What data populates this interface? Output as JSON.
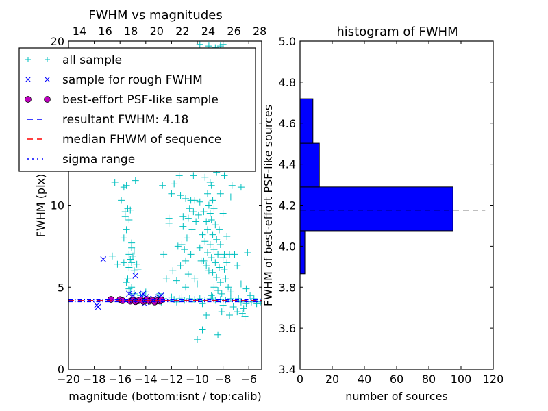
{
  "chart_data": [
    {
      "type": "scatter",
      "title": "FWHM vs magnitudes",
      "xlabel": "magnitude (bottom:isnt / top:calib)",
      "ylabel": "FWHM (pix)",
      "xlim": [
        -20,
        -5
      ],
      "ylim": [
        0,
        20
      ],
      "xticks": [
        -20,
        -18,
        -16,
        -14,
        -12,
        -10,
        -8,
        -6
      ],
      "xtick_labels": [
        "−20",
        "−18",
        "−16",
        "−14",
        "−12",
        "−10",
        "−8",
        "−6"
      ],
      "yticks": [
        0,
        5,
        10,
        15,
        20
      ],
      "ytick_labels": [
        "0",
        "5",
        "10",
        "15",
        "20"
      ],
      "top_axis": {
        "xlim": [
          13.15,
          28.15
        ],
        "ticks": [
          14,
          16,
          18,
          20,
          22,
          24,
          26,
          28
        ],
        "tick_labels": [
          "14",
          "16",
          "18",
          "20",
          "22",
          "24",
          "26",
          "28"
        ]
      },
      "grid": false,
      "legend": {
        "placement": "upper-left",
        "entries": [
          {
            "label": "all sample",
            "marker": "plus",
            "color": "#00bfbf"
          },
          {
            "label": "sample for rough FWHM",
            "marker": "x",
            "color": "#0000ff"
          },
          {
            "label": "best-effort PSF-like sample",
            "marker": "circle",
            "color": "#bf00bf"
          },
          {
            "label": "resultant FWHM: 4.18",
            "marker": "dashed-line",
            "color": "#0000ff"
          },
          {
            "label": "median FHWM of sequence",
            "marker": "dashed-line",
            "color": "#ff0000"
          },
          {
            "label": "sigma range",
            "marker": "dashdot-line",
            "color": "#0000ff"
          }
        ]
      },
      "hlines": [
        {
          "name": "resultant FWHM",
          "y": 4.18,
          "style": "dashed",
          "color": "#0000ff"
        },
        {
          "name": "median FHWM of sequence",
          "y": 4.18,
          "style": "dashed",
          "color": "#ff0000"
        },
        {
          "name": "sigma range upper",
          "y": 4.24,
          "style": "dashdot",
          "color": "#0000ff"
        },
        {
          "name": "sigma range lower",
          "y": 4.12,
          "style": "dashdot",
          "color": "#0000ff"
        }
      ],
      "series": [
        {
          "name": "all sample",
          "marker": "plus",
          "color": "#00bfbf",
          "points": [
            [
              -16.4,
              11.4
            ],
            [
              -15.7,
              11.1
            ],
            [
              -15.5,
              11.2
            ],
            [
              -14.8,
              11.5
            ],
            [
              -12.7,
              11.2
            ],
            [
              -15.9,
              10.3
            ],
            [
              -15.4,
              9.8
            ],
            [
              -15.6,
              9.6
            ],
            [
              -15.2,
              9.7
            ],
            [
              -15.6,
              9.3
            ],
            [
              -15.3,
              9.1
            ],
            [
              -15.5,
              8.5
            ],
            [
              -15.7,
              8.0
            ],
            [
              -15.1,
              7.7
            ],
            [
              -15.1,
              7.4
            ],
            [
              -14.9,
              7.2
            ],
            [
              -15.3,
              7.0
            ],
            [
              -15.0,
              6.9
            ],
            [
              -15.2,
              6.7
            ],
            [
              -16.6,
              6.9
            ],
            [
              -16.2,
              6.4
            ],
            [
              -15.7,
              6.5
            ],
            [
              -15.1,
              6.5
            ],
            [
              -14.7,
              6.4
            ],
            [
              -15.3,
              6.2
            ],
            [
              -14.9,
              6.0
            ],
            [
              -14.6,
              6.1
            ],
            [
              -15.4,
              5.5
            ],
            [
              -15.5,
              5.3
            ],
            [
              -15.1,
              5.0
            ],
            [
              -15.3,
              4.9
            ],
            [
              -15.2,
              4.7
            ],
            [
              -14.9,
              4.6
            ],
            [
              -12.6,
              7.0
            ],
            [
              -12.2,
              9.2
            ],
            [
              -12.2,
              8.9
            ],
            [
              -12.4,
              5.5
            ],
            [
              -13.0,
              4.3
            ],
            [
              -12.6,
              4.3
            ],
            [
              -12.2,
              4.2
            ],
            [
              -11.8,
              4.25
            ],
            [
              -11.4,
              4.3
            ],
            [
              -11.0,
              4.2
            ],
            [
              -10.6,
              4.3
            ],
            [
              -10.2,
              4.25
            ],
            [
              -9.8,
              4.3
            ],
            [
              -9.4,
              4.2
            ],
            [
              -9.0,
              4.3
            ],
            [
              -8.6,
              4.2
            ],
            [
              -8.2,
              4.25
            ],
            [
              -7.8,
              4.2
            ],
            [
              -7.4,
              4.3
            ],
            [
              -7.0,
              4.2
            ],
            [
              -6.6,
              4.1
            ],
            [
              -6.2,
              4.0
            ],
            [
              -5.8,
              4.1
            ],
            [
              -5.4,
              4.0
            ],
            [
              -5.1,
              4.1
            ],
            [
              -12.0,
              4.4
            ],
            [
              -11.2,
              4.4
            ],
            [
              -10.4,
              4.1
            ],
            [
              -9.6,
              4.0
            ],
            [
              -8.8,
              4.4
            ],
            [
              -8.0,
              3.9
            ],
            [
              -7.2,
              3.8
            ],
            [
              -6.4,
              3.7
            ],
            [
              -12.8,
              4.1
            ],
            [
              -11.6,
              4.1
            ],
            [
              -10.0,
              1.8
            ],
            [
              -9.6,
              2.4
            ],
            [
              -8.4,
              2.1
            ],
            [
              -6.5,
              3.4
            ],
            [
              -6.3,
              3.2
            ],
            [
              -7.5,
              3.3
            ],
            [
              -9.3,
              3.3
            ],
            [
              -8.1,
              3.5
            ],
            [
              -6.9,
              3.5
            ],
            [
              -9.4,
              11.7
            ],
            [
              -9.0,
              11.4
            ],
            [
              -8.9,
              11.2
            ],
            [
              -9.2,
              10.7
            ],
            [
              -8.8,
              10.3
            ],
            [
              -9.1,
              10.0
            ],
            [
              -8.7,
              9.8
            ],
            [
              -9.0,
              9.5
            ],
            [
              -8.9,
              9.1
            ],
            [
              -8.6,
              8.8
            ],
            [
              -9.2,
              8.5
            ],
            [
              -8.8,
              8.2
            ],
            [
              -8.5,
              7.9
            ],
            [
              -9.0,
              7.6
            ],
            [
              -8.7,
              7.3
            ],
            [
              -8.4,
              7.0
            ],
            [
              -8.9,
              6.8
            ],
            [
              -8.6,
              6.5
            ],
            [
              -8.3,
              6.2
            ],
            [
              -8.8,
              5.9
            ],
            [
              -8.5,
              5.6
            ],
            [
              -8.2,
              5.3
            ],
            [
              -8.7,
              5.0
            ],
            [
              -8.4,
              4.8
            ],
            [
              -8.1,
              4.6
            ],
            [
              -8.9,
              4.5
            ],
            [
              -9.1,
              6.0
            ],
            [
              -9.3,
              6.3
            ],
            [
              -9.5,
              6.6
            ],
            [
              -9.2,
              7.1
            ],
            [
              -9.4,
              7.8
            ],
            [
              -9.6,
              8.2
            ],
            [
              -9.3,
              9.0
            ],
            [
              -9.5,
              9.6
            ],
            [
              -8.3,
              8.5
            ],
            [
              -8.2,
              7.6
            ],
            [
              -8.0,
              6.8
            ],
            [
              -7.9,
              6.1
            ],
            [
              -7.8,
              5.5
            ],
            [
              -7.6,
              5.0
            ],
            [
              -7.4,
              4.7
            ],
            [
              -10.9,
              10.4
            ],
            [
              -10.5,
              10.3
            ],
            [
              -10.2,
              10.3
            ],
            [
              -9.8,
              10.2
            ],
            [
              -10.6,
              9.8
            ],
            [
              -10.3,
              9.6
            ],
            [
              -11.1,
              9.3
            ],
            [
              -10.7,
              9.2
            ],
            [
              -10.1,
              9.0
            ],
            [
              -10.4,
              8.5
            ],
            [
              -10.8,
              8.0
            ],
            [
              -11.2,
              7.6
            ],
            [
              -11.0,
              7.3
            ],
            [
              -10.5,
              7.0
            ],
            [
              -10.9,
              6.6
            ],
            [
              -11.3,
              6.3
            ],
            [
              -10.7,
              5.8
            ],
            [
              -10.2,
              5.5
            ],
            [
              -10.0,
              5.2
            ],
            [
              -10.9,
              5.0
            ],
            [
              -11.6,
              5.4
            ],
            [
              -11.9,
              6.0
            ],
            [
              -11.5,
              7.5
            ],
            [
              -11.1,
              8.7
            ],
            [
              -9.9,
              9.4
            ],
            [
              -9.7,
              6.6
            ],
            [
              -9.8,
              7.4
            ],
            [
              -7.9,
              7.0
            ],
            [
              -7.5,
              7.0
            ],
            [
              -7.1,
              7.0
            ],
            [
              -6.9,
              6.3
            ],
            [
              -6.6,
              5.2
            ],
            [
              -6.2,
              4.9
            ],
            [
              -5.9,
              4.5
            ],
            [
              -6.8,
              4.3
            ],
            [
              -7.7,
              6.5
            ],
            [
              -7.7,
              8.1
            ],
            [
              -8.0,
              9.5
            ],
            [
              -7.3,
              11.2
            ],
            [
              -6.6,
              11.1
            ],
            [
              -7.4,
              10.5
            ],
            [
              -8.2,
              10.7
            ],
            [
              -7.9,
              11.8
            ],
            [
              -8.5,
              12.0
            ],
            [
              -9.2,
              12.3
            ],
            [
              -10.3,
              11.8
            ],
            [
              -11.4,
              11.8
            ],
            [
              -11.8,
              11.3
            ],
            [
              -9.8,
              19.8
            ],
            [
              -9.1,
              19.7
            ],
            [
              -8.6,
              19.6
            ],
            [
              -8.2,
              19.7
            ],
            [
              -8.0,
              19.8
            ],
            [
              -11.3,
              10.6
            ],
            [
              -12.0,
              10.7
            ],
            [
              -6.1,
              7.1
            ],
            [
              -5.6,
              4.3
            ],
            [
              -5.3,
              4.0
            ],
            [
              -12.9,
              4.6
            ],
            [
              -14.4,
              4.5
            ],
            [
              -14.0,
              4.7
            ]
          ]
        },
        {
          "name": "sample for rough FWHM",
          "marker": "x",
          "color": "#0000ff",
          "points": [
            [
              -17.3,
              6.7
            ],
            [
              -14.8,
              5.7
            ],
            [
              -17.8,
              3.9
            ],
            [
              -17.7,
              3.8
            ],
            [
              -15.3,
              4.6
            ],
            [
              -15.0,
              4.5
            ],
            [
              -14.3,
              4.5
            ],
            [
              -14.2,
              4.6
            ],
            [
              -14.0,
              4.4
            ],
            [
              -13.8,
              4.3
            ],
            [
              -13.4,
              4.3
            ],
            [
              -13.0,
              4.4
            ],
            [
              -12.8,
              4.5
            ],
            [
              -14.1,
              4.0
            ],
            [
              -13.6,
              4.1
            ],
            [
              -14.6,
              4.2
            ],
            [
              -13.3,
              4.2
            ]
          ]
        },
        {
          "name": "best-effort PSF-like sample",
          "marker": "circle",
          "color": "#bf00bf",
          "points": [
            [
              -16.7,
              4.26
            ],
            [
              -16.0,
              4.25
            ],
            [
              -15.8,
              4.18
            ],
            [
              -15.2,
              4.15
            ],
            [
              -15.0,
              4.2
            ],
            [
              -14.8,
              4.12
            ],
            [
              -14.6,
              4.17
            ],
            [
              -14.4,
              4.22
            ],
            [
              -14.2,
              4.14
            ],
            [
              -14.0,
              4.18
            ],
            [
              -13.9,
              4.25
            ],
            [
              -13.7,
              4.15
            ],
            [
              -13.5,
              4.2
            ],
            [
              -13.3,
              4.1
            ],
            [
              -13.1,
              4.18
            ],
            [
              -12.9,
              4.15
            ],
            [
              -12.8,
              4.22
            ]
          ]
        }
      ]
    },
    {
      "type": "bar",
      "orientation": "horizontal",
      "title": "histogram of FWHM",
      "xlabel": "number of sources",
      "ylabel": "FWHM of best-effort PSF-like sources",
      "xlim": [
        0,
        120
      ],
      "ylim": [
        3.4,
        5.0
      ],
      "xticks": [
        0,
        20,
        40,
        60,
        80,
        100,
        120
      ],
      "xtick_labels": [
        "0",
        "20",
        "40",
        "60",
        "80",
        "100",
        "120"
      ],
      "yticks": [
        3.4,
        3.6,
        3.8,
        4.0,
        4.2,
        4.4,
        4.6,
        4.8,
        5.0
      ],
      "ytick_labels": [
        "3.4",
        "3.6",
        "3.8",
        "4.0",
        "4.2",
        "4.4",
        "4.6",
        "4.8",
        "5.0"
      ],
      "grid": false,
      "color": "#0000ff",
      "bins": [
        {
          "low": 3.865,
          "high": 4.075,
          "count": 3
        },
        {
          "low": 4.075,
          "high": 4.289,
          "count": 95
        },
        {
          "low": 4.289,
          "high": 4.502,
          "count": 12
        },
        {
          "low": 4.502,
          "high": 4.719,
          "count": 8
        }
      ],
      "hline": {
        "y": 4.176,
        "xmin": 0,
        "xmax": 115,
        "style": "dashed",
        "color": "#000000"
      }
    }
  ]
}
